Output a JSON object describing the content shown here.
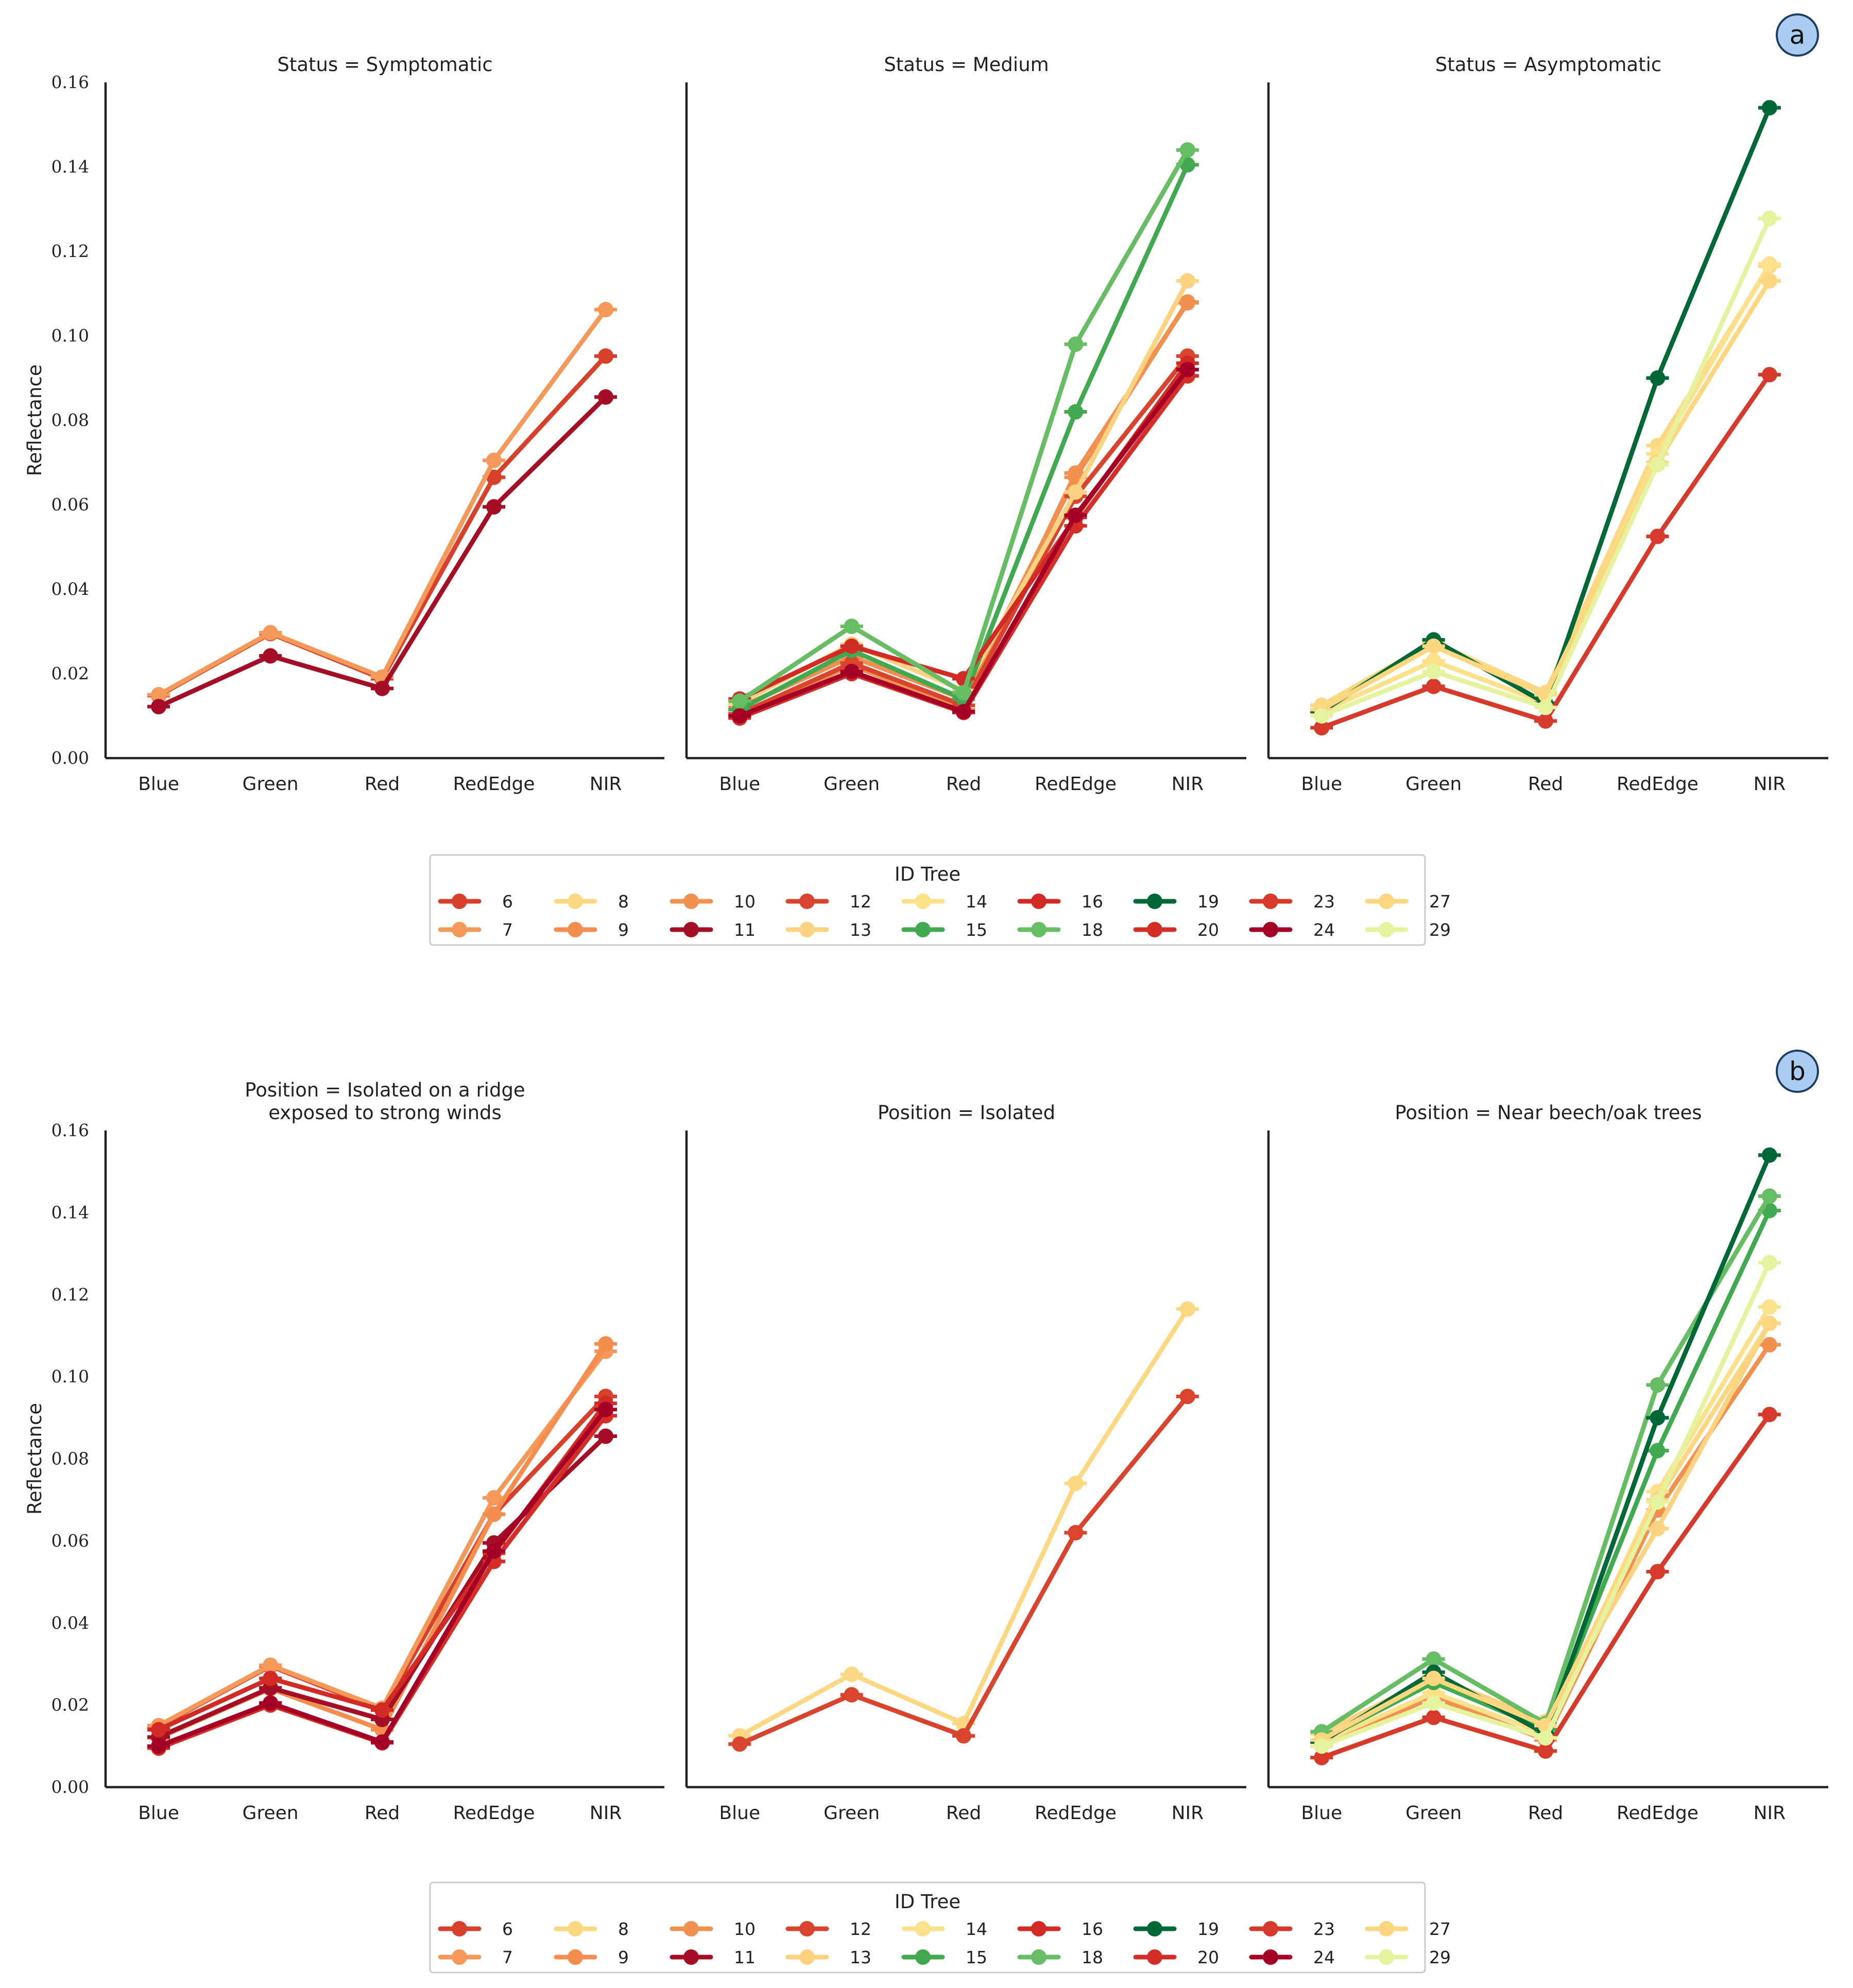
{
  "chart_data": {
    "type": "line",
    "bands": [
      "Blue",
      "Green",
      "Red",
      "RedEdge",
      "NIR"
    ],
    "ylabel": "Reflectance",
    "ylim": [
      0,
      0.16
    ],
    "yticks": [
      "0.00",
      "0.02",
      "0.04",
      "0.06",
      "0.08",
      "0.10",
      "0.12",
      "0.14",
      "0.16"
    ],
    "legend_title": "ID Tree",
    "tree_colors": {
      "6": "#d7402b",
      "7": "#f4995a",
      "8": "#fdd882",
      "9": "#f58d4f",
      "10": "#f09150",
      "11": "#a50f26",
      "12": "#d9442e",
      "13": "#fdd382",
      "14": "#fde08a",
      "15": "#41a94f",
      "16": "#d22b26",
      "18": "#66bd63",
      "19": "#006836",
      "20": "#d42e26",
      "23": "#d63a2a",
      "24": "#a50026",
      "27": "#fdd680",
      "29": "#e7f29e"
    },
    "trees": {
      "6": [
        0.0148,
        0.0295,
        0.0188,
        0.0665,
        0.0952
      ],
      "7": [
        0.015,
        0.0297,
        0.0192,
        0.0705,
        0.1062
      ],
      "8": [
        0.0125,
        0.0275,
        0.0155,
        0.074,
        0.1165
      ],
      "9": [
        0.012,
        0.024,
        0.014,
        0.0665,
        0.108
      ],
      "10": [
        0.01,
        0.022,
        0.0115,
        0.0675,
        0.1078
      ],
      "11": [
        0.0122,
        0.0242,
        0.0165,
        0.0595,
        0.0855
      ],
      "12": [
        0.0105,
        0.0225,
        0.0125,
        0.062,
        0.0952
      ],
      "13": [
        0.013,
        0.027,
        0.016,
        0.063,
        0.113
      ],
      "14": [
        0.011,
        0.023,
        0.013,
        0.072,
        0.117
      ],
      "15": [
        0.0115,
        0.0255,
        0.014,
        0.082,
        0.1405
      ],
      "16": [
        0.014,
        0.0265,
        0.0188,
        0.057,
        0.0935
      ],
      "18": [
        0.0135,
        0.0312,
        0.0155,
        0.098,
        0.144
      ],
      "19": [
        0.011,
        0.028,
        0.013,
        0.09,
        0.154
      ],
      "20": [
        0.0095,
        0.02,
        0.0108,
        0.055,
        0.0905
      ],
      "23": [
        0.0072,
        0.017,
        0.0088,
        0.0525,
        0.0908
      ],
      "24": [
        0.01,
        0.0205,
        0.011,
        0.0575,
        0.092
      ],
      "27": [
        0.0115,
        0.0265,
        0.015,
        0.07,
        0.113
      ],
      "29": [
        0.01,
        0.0205,
        0.012,
        0.0695,
        0.1278
      ]
    },
    "rows": [
      {
        "label": "a",
        "panels": [
          {
            "title": "Status = Symptomatic",
            "trees": [
              "6",
              "7",
              "11"
            ]
          },
          {
            "title": "Status = Medium",
            "trees": [
              "9",
              "10",
              "12",
              "13",
              "15",
              "16",
              "18",
              "20",
              "24"
            ]
          },
          {
            "title": "Status = Asymptomatic",
            "trees": [
              "8",
              "14",
              "19",
              "23",
              "27",
              "29"
            ]
          }
        ]
      },
      {
        "label": "b",
        "panels": [
          {
            "title": "Position = Isolated on a ridge",
            "title2": "exposed to strong winds",
            "trees": [
              "6",
              "7",
              "9",
              "11",
              "16",
              "20",
              "24"
            ]
          },
          {
            "title": "Position = Isolated",
            "trees": [
              "8",
              "12"
            ]
          },
          {
            "title": "Position = Near beech/oak trees",
            "trees": [
              "10",
              "13",
              "14",
              "15",
              "18",
              "19",
              "23",
              "27",
              "29"
            ]
          }
        ]
      }
    ],
    "legend_columns": [
      [
        "6",
        "7"
      ],
      [
        "8",
        "9"
      ],
      [
        "10",
        "11"
      ],
      [
        "12",
        "13"
      ],
      [
        "14",
        "15"
      ],
      [
        "16",
        "18"
      ],
      [
        "19",
        "20"
      ],
      [
        "23",
        "24"
      ],
      [
        "27",
        "29"
      ]
    ]
  }
}
